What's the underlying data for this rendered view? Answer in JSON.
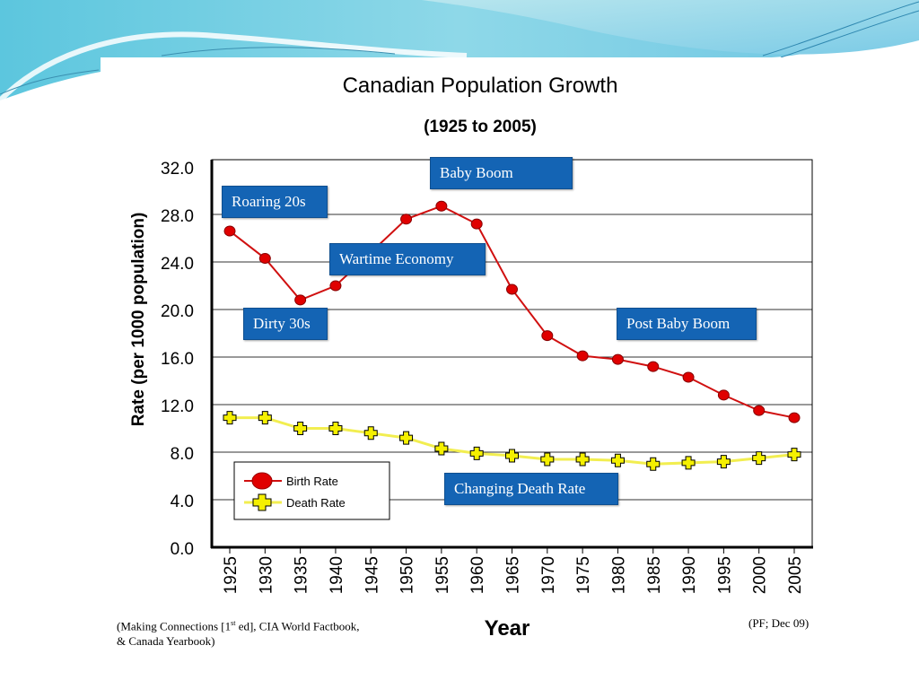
{
  "slide": {
    "source_line1_a": "(Making Connections [1",
    "source_sup": "st",
    "source_line1_b": " ed], CIA World Factbook,",
    "source_line2": "& Canada Yearbook)",
    "credit": "(PF; Dec 09)"
  },
  "callouts": {
    "roaring": "Roaring 20s",
    "dirty": "Dirty 30s",
    "wartime": "Wartime Economy",
    "baby_boom": "Baby Boom",
    "post_baby_boom": "Post Baby Boom",
    "death_rate": "Changing Death Rate"
  },
  "colors": {
    "birth": "#e00000",
    "birth_line": "#d01010",
    "death": "#f5f000",
    "death_line": "#f2ee50",
    "callout_bg": "#1464b4"
  },
  "chart_data": {
    "type": "line",
    "title": "Canadian Population Growth",
    "subtitle": "(1925 to 2005)",
    "xlabel": "Year",
    "ylabel": "Rate (per 1000 population)",
    "ylim": [
      0,
      32
    ],
    "yticks": [
      "0.0",
      "4.0",
      "8.0",
      "12.0",
      "16.0",
      "20.0",
      "24.0",
      "28.0",
      "32.0"
    ],
    "ytick_values": [
      0,
      4,
      8,
      12,
      16,
      20,
      24,
      28,
      32
    ],
    "categories": [
      "1925",
      "1930",
      "1935",
      "1940",
      "1945",
      "1950",
      "1955",
      "1960",
      "1965",
      "1970",
      "1975",
      "1980",
      "1985",
      "1990",
      "1995",
      "2000",
      "2005"
    ],
    "grid": true,
    "legend_position": "bottom-left",
    "series": [
      {
        "name": "Birth Rate",
        "marker": "circle",
        "values": [
          26.6,
          24.3,
          20.8,
          22.0,
          24.8,
          27.6,
          28.7,
          27.2,
          21.7,
          17.8,
          16.1,
          15.8,
          15.2,
          14.3,
          12.8,
          11.5,
          10.9
        ]
      },
      {
        "name": "Death Rate",
        "marker": "cross",
        "values": [
          10.9,
          10.9,
          10.0,
          10.0,
          9.6,
          9.2,
          8.3,
          7.9,
          7.7,
          7.4,
          7.4,
          7.3,
          7.0,
          7.1,
          7.2,
          7.5,
          7.8
        ]
      }
    ]
  }
}
